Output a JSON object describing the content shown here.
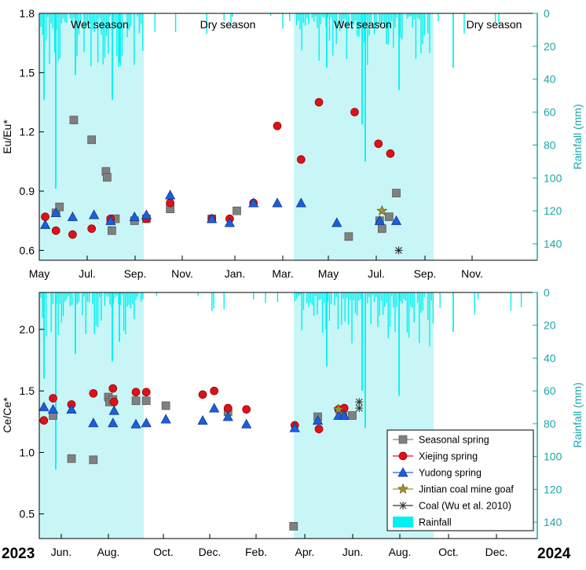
{
  "colors": {
    "rainfall": "#00f0f0",
    "wet_band": "#c8f6f6",
    "right_axis": "#1aa8a8",
    "seasonal": "#808080",
    "xiejing": "#e0101a",
    "yudong": "#1a5fe0",
    "jintian": "#a09030",
    "coal": "#333333"
  },
  "chart_data": [
    {
      "type": "scatter",
      "ylabel": "Eu/Eu*",
      "ylabel_right": "Rainfall (mm)",
      "ylim": [
        0.55,
        1.8
      ],
      "ylim_right": [
        150,
        0
      ],
      "y_ticks": [
        "0.6",
        "0.9",
        "1.2",
        "1.5",
        "1.8"
      ],
      "y_right_ticks": [
        "0",
        "20",
        "40",
        "60",
        "80",
        "100",
        "120",
        "140"
      ],
      "x_ticks": [
        "May",
        "Jul.",
        "Sep.",
        "Nov.",
        "Jan.",
        "Mar.",
        "May",
        "Jul.",
        "Sep.",
        "Nov."
      ],
      "season_labels": [
        "Wet season",
        "Dry season",
        "Wet season",
        "Dry season"
      ],
      "series": [
        {
          "name": "Seasonal spring",
          "marker": "square",
          "points": [
            [
              0.7,
              0.79
            ],
            [
              0.85,
              0.82
            ],
            [
              1.45,
              1.26
            ],
            [
              2.2,
              1.16
            ],
            [
              2.8,
              1.0
            ],
            [
              2.85,
              0.97
            ],
            [
              3.0,
              0.75
            ],
            [
              3.05,
              0.7
            ],
            [
              3.2,
              0.76
            ],
            [
              4.0,
              0.75
            ],
            [
              4.5,
              0.76
            ],
            [
              5.5,
              0.81
            ],
            [
              7.25,
              0.76
            ],
            [
              8.3,
              0.8
            ],
            [
              13.0,
              0.67
            ],
            [
              14.3,
              0.75
            ],
            [
              14.4,
              0.71
            ],
            [
              14.7,
              0.77
            ],
            [
              15.0,
              0.89
            ]
          ]
        },
        {
          "name": "Xiejing spring",
          "marker": "circle",
          "points": [
            [
              0.25,
              0.77
            ],
            [
              0.7,
              0.7
            ],
            [
              1.4,
              0.68
            ],
            [
              2.2,
              0.71
            ],
            [
              3.0,
              0.76
            ],
            [
              4.5,
              0.76
            ],
            [
              5.5,
              0.84
            ],
            [
              7.25,
              0.76
            ],
            [
              8.0,
              0.76
            ],
            [
              9.0,
              0.84
            ],
            [
              10.0,
              1.23
            ],
            [
              11.0,
              1.06
            ],
            [
              11.75,
              1.35
            ],
            [
              13.25,
              1.3
            ],
            [
              14.25,
              1.14
            ],
            [
              14.75,
              1.09
            ]
          ]
        },
        {
          "name": "Yudong spring",
          "marker": "triangle",
          "points": [
            [
              0.25,
              0.73
            ],
            [
              0.7,
              0.79
            ],
            [
              1.4,
              0.77
            ],
            [
              2.3,
              0.78
            ],
            [
              3.0,
              0.75
            ],
            [
              4.0,
              0.77
            ],
            [
              4.5,
              0.78
            ],
            [
              5.5,
              0.88
            ],
            [
              7.25,
              0.76
            ],
            [
              8.0,
              0.74
            ],
            [
              9.0,
              0.84
            ],
            [
              10.0,
              0.84
            ],
            [
              11.0,
              0.84
            ],
            [
              12.5,
              0.74
            ],
            [
              14.3,
              0.75
            ],
            [
              15.0,
              0.75
            ]
          ]
        },
        {
          "name": "Jintian coal mine goaf",
          "marker": "star",
          "points": [
            [
              14.4,
              0.8
            ]
          ]
        },
        {
          "name": "Coal (Wu et al. 2010)",
          "marker": "asterisk",
          "points": [
            [
              15.1,
              0.6
            ]
          ]
        }
      ]
    },
    {
      "type": "scatter",
      "ylabel": "Ce/Ce*",
      "ylabel_right": "Rainfall (mm)",
      "ylim": [
        0.3,
        2.3
      ],
      "ylim_right": [
        150,
        0
      ],
      "y_ticks": [
        "0.5",
        "1.0",
        "1.5",
        "2.0"
      ],
      "y_right_ticks": [
        "0",
        "20",
        "40",
        "60",
        "80",
        "100",
        "120",
        "140"
      ],
      "x_ticks": [
        "Jun.",
        "Aug.",
        "Oct.",
        "Dec.",
        "Feb.",
        "Apr.",
        "Jun.",
        "Aug.",
        "Oct.",
        "Dec."
      ],
      "year_labels": [
        "2023",
        "2024"
      ],
      "series": [
        {
          "name": "Seasonal spring",
          "marker": "square",
          "points": [
            [
              0.6,
              1.3
            ],
            [
              1.4,
              0.95
            ],
            [
              2.35,
              0.94
            ],
            [
              3.0,
              1.45
            ],
            [
              3.05,
              1.41
            ],
            [
              3.2,
              1.43
            ],
            [
              4.2,
              1.42
            ],
            [
              4.65,
              1.42
            ],
            [
              5.5,
              1.38
            ],
            [
              8.2,
              1.33
            ],
            [
              11.05,
              0.4
            ],
            [
              12.1,
              1.29
            ],
            [
              13.2,
              1.3
            ],
            [
              13.6,
              1.3
            ]
          ]
        },
        {
          "name": "Xiejing spring",
          "marker": "circle",
          "points": [
            [
              0.2,
              1.26
            ],
            [
              0.6,
              1.44
            ],
            [
              1.4,
              1.39
            ],
            [
              2.35,
              1.48
            ],
            [
              3.2,
              1.52
            ],
            [
              3.25,
              1.41
            ],
            [
              4.2,
              1.49
            ],
            [
              4.65,
              1.49
            ],
            [
              7.1,
              1.47
            ],
            [
              7.6,
              1.5
            ],
            [
              8.2,
              1.36
            ],
            [
              9.0,
              1.35
            ],
            [
              11.1,
              1.22
            ],
            [
              12.15,
              1.19
            ],
            [
              13.0,
              1.35
            ],
            [
              13.25,
              1.36
            ]
          ]
        },
        {
          "name": "Yudong spring",
          "marker": "triangle",
          "points": [
            [
              0.2,
              1.37
            ],
            [
              0.6,
              1.35
            ],
            [
              1.4,
              1.35
            ],
            [
              2.35,
              1.24
            ],
            [
              3.2,
              1.24
            ],
            [
              3.25,
              1.34
            ],
            [
              4.2,
              1.23
            ],
            [
              4.65,
              1.24
            ],
            [
              5.5,
              1.27
            ],
            [
              7.1,
              1.26
            ],
            [
              7.6,
              1.36
            ],
            [
              8.2,
              1.29
            ],
            [
              9.0,
              1.23
            ],
            [
              11.1,
              1.2
            ],
            [
              12.1,
              1.26
            ],
            [
              13.0,
              1.3
            ],
            [
              13.25,
              1.3
            ]
          ]
        },
        {
          "name": "Jintian coal mine goaf",
          "marker": "star",
          "points": [
            [
              13.0,
              1.35
            ]
          ]
        },
        {
          "name": "Coal (Wu et al. 2010)",
          "marker": "asterisk",
          "points": [
            [
              13.9,
              1.36
            ],
            [
              13.9,
              1.41
            ]
          ]
        }
      ]
    }
  ],
  "legend": {
    "items": [
      "Seasonal spring",
      "Xiejing spring",
      "Yudong spring",
      "Jintian coal mine goaf",
      "Coal (Wu et al. 2010)",
      "Rainfall"
    ]
  }
}
